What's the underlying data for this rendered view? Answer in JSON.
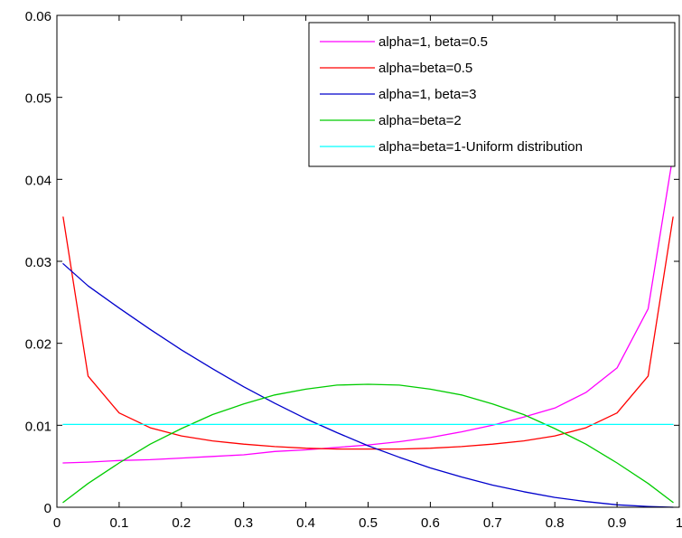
{
  "chart_data": {
    "type": "line",
    "title": "",
    "xlabel": "",
    "ylabel": "",
    "xlim": [
      0,
      1
    ],
    "ylim": [
      0,
      0.06
    ],
    "xticks": [
      "0",
      "0.1",
      "0.2",
      "0.3",
      "0.4",
      "0.5",
      "0.6",
      "0.7",
      "0.8",
      "0.9",
      "1"
    ],
    "yticks": [
      "0",
      "0.01",
      "0.02",
      "0.03",
      "0.04",
      "0.05",
      "0.06"
    ],
    "grid": false,
    "legend_position": "top-right",
    "x": [
      0.01,
      0.05,
      0.1,
      0.15,
      0.2,
      0.25,
      0.3,
      0.35,
      0.4,
      0.45,
      0.5,
      0.55,
      0.6,
      0.65,
      0.7,
      0.75,
      0.8,
      0.85,
      0.9,
      0.95,
      0.99
    ],
    "series": [
      {
        "name": "alpha=1, beta=0.5",
        "color": "#ff00ff",
        "values": [
          0.0054,
          0.0055,
          0.0057,
          0.0058,
          0.006,
          0.0062,
          0.0064,
          0.0068,
          0.007,
          0.0073,
          0.0076,
          0.008,
          0.0085,
          0.0092,
          0.01,
          0.011,
          0.0121,
          0.014,
          0.017,
          0.0242,
          0.043
        ]
      },
      {
        "name": "alpha=beta=0.5",
        "color": "#ff0000",
        "values": [
          0.0354,
          0.016,
          0.0115,
          0.0097,
          0.0087,
          0.0081,
          0.0077,
          0.0074,
          0.0072,
          0.0071,
          0.0071,
          0.0071,
          0.0072,
          0.0074,
          0.0077,
          0.0081,
          0.0087,
          0.0097,
          0.0115,
          0.016,
          0.0354
        ]
      },
      {
        "name": "alpha=1, beta=3",
        "color": "#0000cc",
        "values": [
          0.0297,
          0.027,
          0.0243,
          0.0217,
          0.0192,
          0.0169,
          0.0147,
          0.0127,
          0.0108,
          0.0091,
          0.0075,
          0.0061,
          0.0048,
          0.0037,
          0.0027,
          0.0019,
          0.0012,
          0.0007,
          0.0003,
          0.0001,
          0.0
        ]
      },
      {
        "name": "alpha=beta=2",
        "color": "#00cc00",
        "values": [
          0.0006,
          0.0029,
          0.0054,
          0.0077,
          0.0096,
          0.0113,
          0.0126,
          0.0137,
          0.0144,
          0.0149,
          0.015,
          0.0149,
          0.0144,
          0.0137,
          0.0126,
          0.0113,
          0.0096,
          0.0077,
          0.0054,
          0.0029,
          0.0006
        ]
      },
      {
        "name": "alpha=beta=1-Uniform distribution",
        "color": "#00ffff",
        "values": [
          0.0101,
          0.0101,
          0.0101,
          0.0101,
          0.0101,
          0.0101,
          0.0101,
          0.0101,
          0.0101,
          0.0101,
          0.0101,
          0.0101,
          0.0101,
          0.0101,
          0.0101,
          0.0101,
          0.0101,
          0.0101,
          0.0101,
          0.0101,
          0.0101
        ]
      }
    ]
  }
}
